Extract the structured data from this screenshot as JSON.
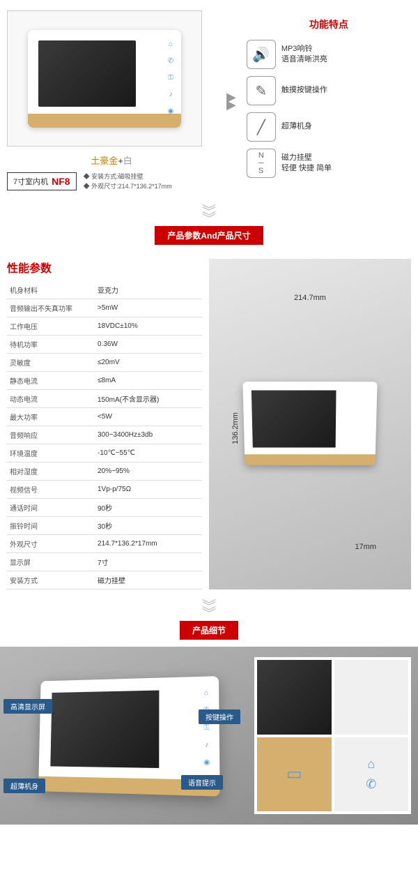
{
  "section1": {
    "features_title": "功能特点",
    "color_gold": "土豪金",
    "color_plus": "+",
    "color_white": "白",
    "model_prefix": "7寸室内机",
    "model_code": "NF8",
    "install_label": "安装方式:磁吸挂壁",
    "size_label": "外观尺寸:214.7*136.2*17mm",
    "features": [
      {
        "icon": "🔊",
        "line1": "MP3响铃",
        "line2": "语音清晰洪亮"
      },
      {
        "icon": "✎",
        "line1": "触摸按键操作",
        "line2": ""
      },
      {
        "icon": "╱",
        "line1": "超薄机身",
        "line2": ""
      },
      {
        "icon": "N/S",
        "line1": "磁力挂壁",
        "line2": "轻便 快捷 简单"
      }
    ]
  },
  "banner1": "产品参数And产品尺寸",
  "section2": {
    "title": "性能参数",
    "dim_w": "214.7mm",
    "dim_h": "136.2mm",
    "dim_d": "17mm",
    "rows": [
      [
        "机身材料",
        "亚克力"
      ],
      [
        "音频输出不失真功率",
        ">5mW"
      ],
      [
        "工作电压",
        "18VDC±10%"
      ],
      [
        "待机功率",
        "0.36W"
      ],
      [
        "灵敏度",
        "≤20mV"
      ],
      [
        "静态电流",
        "≤8mA"
      ],
      [
        "动态电流",
        "150mA(不含显示器)"
      ],
      [
        "最大功率",
        "<5W"
      ],
      [
        "音频响应",
        "300~3400Hz±3db"
      ],
      [
        "环境温度",
        "-10℃~55℃"
      ],
      [
        "相对湿度",
        "20%~95%"
      ],
      [
        "视频信号",
        "1Vp-p/75Ω"
      ],
      [
        "通话时间",
        "90秒"
      ],
      [
        "振铃时间",
        "30秒"
      ],
      [
        "外观尺寸",
        "214.7*136.2*17mm"
      ],
      [
        "显示屏",
        "7寸"
      ],
      [
        "安装方式",
        "磁力挂壁"
      ]
    ]
  },
  "banner2": "产品细节",
  "section3": {
    "callouts": {
      "c1": "高清显示屏",
      "c2": "超薄机身",
      "c3": "按键操作",
      "c4": "语音提示"
    }
  },
  "colors": {
    "red": "#c00",
    "gold": "#d4af6e",
    "blue": "#2a5a8a",
    "icon_blue": "#5b9bd5"
  }
}
